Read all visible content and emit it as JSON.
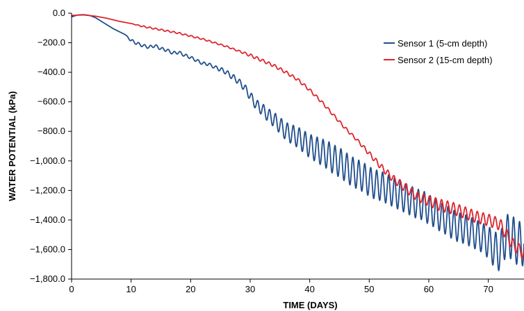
{
  "chart_data": {
    "type": "line",
    "xlabel": "TIME (DAYS)",
    "ylabel": "WATER POTENTIAL (kPa)",
    "xlim": [
      0,
      76
    ],
    "ylim": [
      -1800,
      0
    ],
    "x_ticks": [
      0,
      10,
      20,
      30,
      40,
      50,
      60,
      70
    ],
    "x_tick_labels": [
      "0",
      "10",
      "20",
      "30",
      "40",
      "50",
      "60",
      "70"
    ],
    "y_ticks": [
      0,
      -200,
      -400,
      -600,
      -800,
      -1000,
      -1200,
      -1400,
      -1600,
      -1800
    ],
    "y_tick_labels": [
      "0.0",
      "−200.0",
      "−400.0",
      "−600.0",
      "−800.0",
      "−1,000.0",
      "−1,200.0",
      "−1,400.0",
      "−1,600.0",
      "−1,800.0"
    ],
    "grid": false,
    "legend_position": "top-right",
    "series": [
      {
        "name": "Sensor 1 (5-cm depth)",
        "color": "#1f4e8c",
        "x": [
          0,
          1,
          2,
          3,
          4,
          5,
          6,
          7,
          8,
          9,
          10,
          11,
          12,
          13,
          14,
          15,
          16,
          17,
          18,
          19,
          20,
          21,
          22,
          23,
          24,
          25,
          26,
          27,
          28,
          29,
          30,
          31,
          32,
          33,
          34,
          35,
          36,
          37,
          38,
          39,
          40,
          41,
          42,
          43,
          44,
          45,
          46,
          47,
          48,
          49,
          50,
          51,
          52,
          53,
          54,
          55,
          56,
          57,
          58,
          59,
          60,
          61,
          62,
          63,
          64,
          65,
          66,
          67,
          68,
          69,
          70,
          71,
          72,
          73,
          74,
          75,
          76
        ],
        "y": [
          -25,
          -12,
          -10,
          -15,
          -30,
          -55,
          -80,
          -105,
          -125,
          -145,
          -185,
          -205,
          -220,
          -230,
          -220,
          -240,
          -250,
          -270,
          -265,
          -285,
          -300,
          -320,
          -340,
          -345,
          -365,
          -380,
          -400,
          -430,
          -460,
          -500,
          -560,
          -620,
          -650,
          -690,
          -720,
          -760,
          -800,
          -820,
          -840,
          -870,
          -900,
          -920,
          -940,
          -960,
          -990,
          -1010,
          -1040,
          -1070,
          -1090,
          -1110,
          -1140,
          -1160,
          -1170,
          -1190,
          -1210,
          -1230,
          -1250,
          -1270,
          -1290,
          -1300,
          -1330,
          -1350,
          -1380,
          -1400,
          -1430,
          -1450,
          -1460,
          -1480,
          -1500,
          -1520,
          -1550,
          -1600,
          -1620,
          -1500,
          -1520,
          -1560,
          -1560
        ],
        "oscillation_amplitude": [
          0,
          0,
          0,
          0,
          0,
          0,
          0,
          0,
          0,
          0,
          10,
          10,
          10,
          10,
          10,
          10,
          10,
          10,
          10,
          10,
          10,
          10,
          10,
          10,
          10,
          15,
          15,
          20,
          20,
          25,
          30,
          35,
          40,
          45,
          50,
          55,
          60,
          65,
          70,
          75,
          80,
          85,
          90,
          95,
          100,
          100,
          100,
          100,
          100,
          100,
          100,
          100,
          100,
          100,
          100,
          100,
          100,
          100,
          100,
          100,
          100,
          100,
          100,
          100,
          100,
          100,
          100,
          100,
          100,
          100,
          110,
          120,
          130,
          140,
          150,
          150,
          150
        ]
      },
      {
        "name": "Sensor 2 (15-cm depth)",
        "color": "#e0242c",
        "x": [
          0,
          2,
          4,
          6,
          8,
          10,
          12,
          14,
          16,
          18,
          20,
          22,
          24,
          26,
          28,
          30,
          32,
          34,
          36,
          38,
          40,
          42,
          44,
          46,
          48,
          50,
          52,
          54,
          56,
          58,
          60,
          62,
          64,
          66,
          68,
          70,
          72,
          74,
          76
        ],
        "y": [
          -15,
          -12,
          -20,
          -35,
          -55,
          -70,
          -90,
          -105,
          -120,
          -135,
          -155,
          -175,
          -200,
          -225,
          -255,
          -285,
          -320,
          -355,
          -400,
          -450,
          -520,
          -600,
          -690,
          -780,
          -860,
          -950,
          -1040,
          -1120,
          -1180,
          -1240,
          -1270,
          -1300,
          -1320,
          -1350,
          -1380,
          -1400,
          -1430,
          -1560,
          -1630
        ],
        "oscillation_amplitude": [
          0,
          0,
          0,
          0,
          0,
          0,
          5,
          5,
          5,
          5,
          5,
          5,
          5,
          5,
          5,
          10,
          10,
          10,
          10,
          10,
          10,
          10,
          10,
          10,
          10,
          15,
          20,
          25,
          30,
          30,
          35,
          40,
          40,
          40,
          40,
          40,
          40,
          40,
          40
        ]
      }
    ]
  }
}
